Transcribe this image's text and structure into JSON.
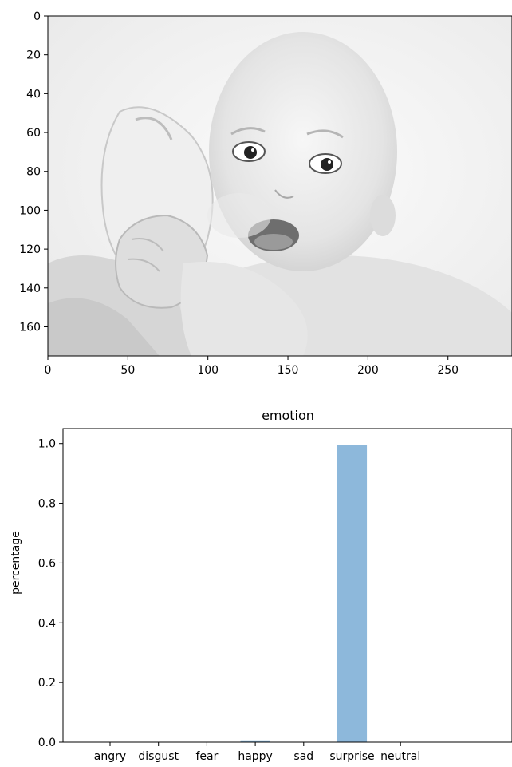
{
  "chart_data": [
    {
      "type": "image",
      "image_subject": "grayscale photo of a baby with open mouth holding a bottle",
      "x_ticks": [
        "0",
        "50",
        "100",
        "150",
        "200",
        "250"
      ],
      "y_ticks": [
        "0",
        "20",
        "40",
        "60",
        "80",
        "100",
        "120",
        "140",
        "160"
      ],
      "xlim": [
        0,
        290
      ],
      "ylim": [
        175,
        0
      ]
    },
    {
      "type": "bar",
      "title": "emotion",
      "xlabel": "",
      "ylabel": "percentage",
      "categories": [
        "angry",
        "disgust",
        "fear",
        "happy",
        "sad",
        "surprise",
        "neutral"
      ],
      "values": [
        0.0,
        0.0,
        0.0,
        0.006,
        0.0,
        0.994,
        0.0
      ],
      "y_ticks": [
        "0.0",
        "0.2",
        "0.4",
        "0.6",
        "0.8",
        "1.0"
      ],
      "ylim": [
        0,
        1.05
      ],
      "bar_color": "#8db8db",
      "grid": false
    }
  ]
}
